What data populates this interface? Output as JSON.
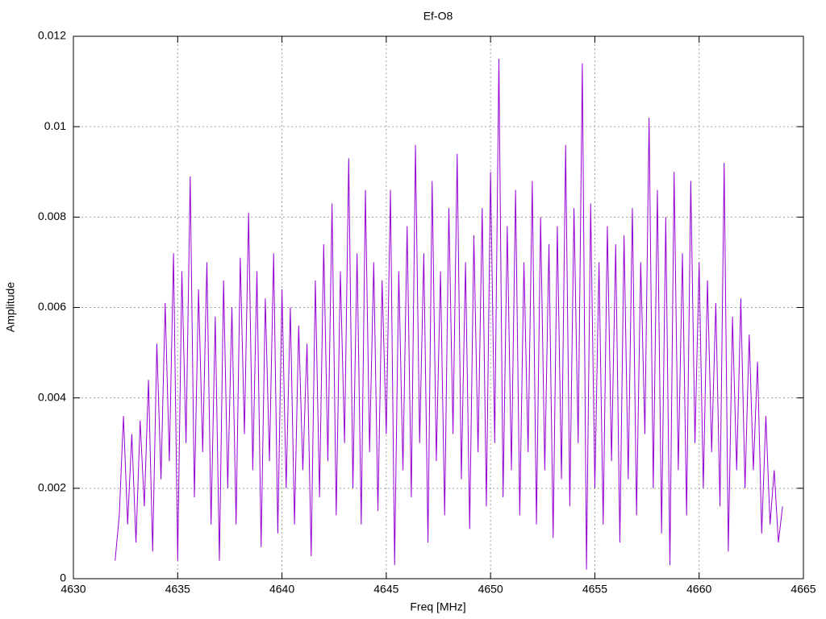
{
  "chart_data": {
    "type": "line",
    "title": "Ef-O8",
    "x_label": "Freq [MHz]",
    "y_label": "Amplitude",
    "color": "#9400d3",
    "grid": true,
    "xlim": [
      4630,
      4665
    ],
    "xticks": [
      4630,
      4635,
      4640,
      4645,
      4650,
      4655,
      4660,
      4665
    ],
    "ylim": [
      0,
      0.012
    ],
    "yticks": [
      0,
      0.002,
      0.004,
      0.006,
      0.008,
      0.01,
      0.012
    ],
    "x": [
      4632.0,
      4632.2,
      4632.4,
      4632.6,
      4632.8,
      4633.0,
      4633.2,
      4633.4,
      4633.6,
      4633.8,
      4634.0,
      4634.2,
      4634.4,
      4634.6,
      4634.8,
      4635.0,
      4635.2,
      4635.4,
      4635.6,
      4635.8,
      4636.0,
      4636.2,
      4636.4,
      4636.6,
      4636.8,
      4637.0,
      4637.2,
      4637.4,
      4637.6,
      4637.8,
      4638.0,
      4638.2,
      4638.4,
      4638.6,
      4638.8,
      4639.0,
      4639.2,
      4639.4,
      4639.6,
      4639.8,
      4640.0,
      4640.2,
      4640.4,
      4640.6,
      4640.8,
      4641.0,
      4641.2,
      4641.4,
      4641.6,
      4641.8,
      4642.0,
      4642.2,
      4642.4,
      4642.6,
      4642.8,
      4643.0,
      4643.2,
      4643.4,
      4643.6,
      4643.8,
      4644.0,
      4644.2,
      4644.4,
      4644.6,
      4644.8,
      4645.0,
      4645.2,
      4645.4,
      4645.6,
      4645.8,
      4646.0,
      4646.2,
      4646.4,
      4646.6,
      4646.8,
      4647.0,
      4647.2,
      4647.4,
      4647.6,
      4647.8,
      4648.0,
      4648.2,
      4648.4,
      4648.6,
      4648.8,
      4649.0,
      4649.2,
      4649.4,
      4649.6,
      4649.8,
      4650.0,
      4650.2,
      4650.4,
      4650.6,
      4650.8,
      4651.0,
      4651.2,
      4651.4,
      4651.6,
      4651.8,
      4652.0,
      4652.2,
      4652.4,
      4652.6,
      4652.8,
      4653.0,
      4653.2,
      4653.4,
      4653.6,
      4653.8,
      4654.0,
      4654.2,
      4654.4,
      4654.6,
      4654.8,
      4655.0,
      4655.2,
      4655.4,
      4655.6,
      4655.8,
      4656.0,
      4656.2,
      4656.4,
      4656.6,
      4656.8,
      4657.0,
      4657.2,
      4657.4,
      4657.6,
      4657.8,
      4658.0,
      4658.2,
      4658.4,
      4658.6,
      4658.8,
      4659.0,
      4659.2,
      4659.4,
      4659.6,
      4659.8,
      4660.0,
      4660.2,
      4660.4,
      4660.6,
      4660.8,
      4661.0,
      4661.2,
      4661.4,
      4661.6,
      4661.8,
      4662.0,
      4662.2,
      4662.4,
      4662.6,
      4662.8,
      4663.0,
      4663.2,
      4663.4,
      4663.6,
      4663.8,
      4664.0
    ],
    "values": [
      0.0004,
      0.0014,
      0.0036,
      0.0012,
      0.0032,
      0.0008,
      0.0035,
      0.0016,
      0.0044,
      0.0006,
      0.0052,
      0.0022,
      0.0061,
      0.0026,
      0.0072,
      0.0004,
      0.0068,
      0.003,
      0.0089,
      0.0018,
      0.0064,
      0.0028,
      0.007,
      0.0012,
      0.0058,
      0.0004,
      0.0066,
      0.002,
      0.006,
      0.0012,
      0.0071,
      0.0032,
      0.0081,
      0.0024,
      0.0068,
      0.0007,
      0.0062,
      0.0026,
      0.0072,
      0.001,
      0.0064,
      0.002,
      0.006,
      0.0012,
      0.0056,
      0.0024,
      0.0052,
      0.0005,
      0.0066,
      0.0018,
      0.0074,
      0.0026,
      0.0083,
      0.0014,
      0.0068,
      0.003,
      0.0093,
      0.002,
      0.0072,
      0.0012,
      0.0086,
      0.0028,
      0.007,
      0.0015,
      0.0066,
      0.0032,
      0.0086,
      0.0003,
      0.0068,
      0.0024,
      0.0078,
      0.0018,
      0.0096,
      0.003,
      0.0072,
      0.0008,
      0.0088,
      0.0026,
      0.0068,
      0.0014,
      0.0082,
      0.0032,
      0.0094,
      0.0022,
      0.007,
      0.0011,
      0.0076,
      0.0028,
      0.0082,
      0.0016,
      0.009,
      0.003,
      0.0115,
      0.0018,
      0.0078,
      0.0024,
      0.0086,
      0.0014,
      0.007,
      0.0028,
      0.0088,
      0.0012,
      0.008,
      0.0024,
      0.0074,
      0.0009,
      0.0078,
      0.0022,
      0.0096,
      0.0016,
      0.0082,
      0.003,
      0.0114,
      0.0002,
      0.0083,
      0.002,
      0.007,
      0.0012,
      0.0078,
      0.0026,
      0.0074,
      0.0008,
      0.0076,
      0.0022,
      0.0082,
      0.0014,
      0.007,
      0.0032,
      0.0102,
      0.002,
      0.0086,
      0.001,
      0.008,
      0.0003,
      0.009,
      0.0024,
      0.0072,
      0.0014,
      0.0088,
      0.003,
      0.007,
      0.002,
      0.0066,
      0.0028,
      0.0061,
      0.0016,
      0.0092,
      0.0006,
      0.0058,
      0.0024,
      0.0062,
      0.002,
      0.0054,
      0.0024,
      0.0048,
      0.001,
      0.0036,
      0.0012,
      0.0024,
      0.0008,
      0.0016
    ]
  }
}
